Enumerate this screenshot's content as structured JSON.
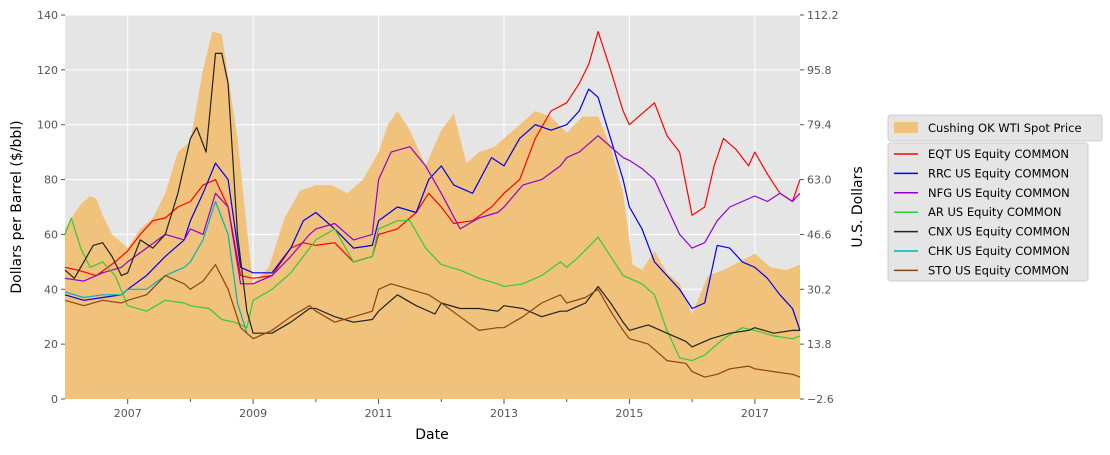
{
  "chart_data": {
    "type": "line",
    "xlabel": "Date",
    "ylabel": "Dollars per Barrel ($/bbl)",
    "ylabel_right": "U.S. Dollars",
    "xlim": [
      2006.0,
      2017.72
    ],
    "ylim": [
      0,
      140
    ],
    "ylim_right": [
      -2.6,
      112.2
    ],
    "x_ticks": [
      2007,
      2009,
      2011,
      2013,
      2015,
      2017
    ],
    "x_minor_ticks": [
      2008,
      2010,
      2012,
      2014,
      2016
    ],
    "y_ticks": [
      0,
      20,
      40,
      60,
      80,
      100,
      120,
      140
    ],
    "y_ticks_right": [
      "−2.6",
      "13.8",
      "30.2",
      "46.6",
      "63.0",
      "79.4",
      "95.8",
      "112.2"
    ],
    "grid": true,
    "legend_position": "right",
    "area": {
      "name": "Cushing OK WTI Spot Price",
      "color": "#f0c27b",
      "x": [
        2006.0,
        2006.1,
        2006.25,
        2006.4,
        2006.5,
        2006.6,
        2006.75,
        2006.85,
        2007.0,
        2007.2,
        2007.4,
        2007.6,
        2007.8,
        2008.0,
        2008.2,
        2008.35,
        2008.5,
        2008.65,
        2008.75,
        2008.9,
        2009.0,
        2009.25,
        2009.5,
        2009.75,
        2010.0,
        2010.25,
        2010.5,
        2010.75,
        2011.0,
        2011.15,
        2011.3,
        2011.5,
        2011.75,
        2012.0,
        2012.2,
        2012.4,
        2012.6,
        2012.85,
        2013.0,
        2013.25,
        2013.5,
        2013.75,
        2014.0,
        2014.25,
        2014.5,
        2014.7,
        2014.9,
        2015.05,
        2015.2,
        2015.4,
        2015.6,
        2015.8,
        2016.0,
        2016.25,
        2016.5,
        2016.75,
        2017.0,
        2017.25,
        2017.5,
        2017.72
      ],
      "values": [
        62,
        66,
        71,
        74,
        73,
        67,
        60,
        58,
        55,
        62,
        66,
        75,
        90,
        94,
        120,
        134,
        133,
        110,
        95,
        62,
        42,
        48,
        66,
        76,
        78,
        78,
        75,
        80,
        90,
        100,
        105,
        98,
        85,
        98,
        104,
        86,
        90,
        92,
        95,
        100,
        105,
        103,
        97,
        103,
        103,
        92,
        75,
        49,
        47,
        54,
        46,
        42,
        31,
        45,
        47,
        50,
        53,
        48,
        47,
        49
      ]
    },
    "series": [
      {
        "name": "EQT US Equity COMMON",
        "color": "#ff0000",
        "x": [
          2006.0,
          2006.2,
          2006.5,
          2006.8,
          2007.0,
          2007.2,
          2007.4,
          2007.6,
          2007.8,
          2008.0,
          2008.2,
          2008.4,
          2008.6,
          2008.8,
          2009.0,
          2009.3,
          2009.6,
          2009.8,
          2010.0,
          2010.3,
          2010.6,
          2010.9,
          2011.0,
          2011.3,
          2011.6,
          2011.8,
          2012.0,
          2012.2,
          2012.5,
          2012.8,
          2013.0,
          2013.25,
          2013.5,
          2013.75,
          2014.0,
          2014.2,
          2014.35,
          2014.5,
          2014.7,
          2014.9,
          2015.0,
          2015.2,
          2015.4,
          2015.6,
          2015.8,
          2016.0,
          2016.2,
          2016.35,
          2016.5,
          2016.7,
          2016.9,
          2017.0,
          2017.2,
          2017.4,
          2017.6,
          2017.72
        ],
        "values": [
          48,
          47,
          45,
          50,
          54,
          60,
          65,
          66,
          70,
          72,
          78,
          80,
          70,
          45,
          44,
          45,
          55,
          57,
          56,
          57,
          50,
          52,
          60,
          62,
          68,
          75,
          70,
          64,
          65,
          70,
          75,
          80,
          95,
          105,
          108,
          115,
          122,
          134,
          120,
          105,
          100,
          104,
          108,
          96,
          90,
          67,
          70,
          85,
          95,
          91,
          85,
          90,
          82,
          75,
          72,
          80
        ]
      },
      {
        "name": "RRC US Equity COMMON",
        "color": "#0000ee",
        "x": [
          2006.0,
          2006.3,
          2006.6,
          2006.9,
          2007.0,
          2007.3,
          2007.6,
          2007.9,
          2008.0,
          2008.2,
          2008.4,
          2008.6,
          2008.8,
          2009.0,
          2009.3,
          2009.6,
          2009.8,
          2010.0,
          2010.3,
          2010.6,
          2010.9,
          2011.0,
          2011.3,
          2011.6,
          2011.8,
          2012.0,
          2012.2,
          2012.5,
          2012.8,
          2013.0,
          2013.25,
          2013.5,
          2013.75,
          2014.0,
          2014.2,
          2014.35,
          2014.5,
          2014.7,
          2014.9,
          2015.0,
          2015.2,
          2015.4,
          2015.6,
          2015.8,
          2016.0,
          2016.2,
          2016.4,
          2016.6,
          2016.8,
          2017.0,
          2017.2,
          2017.4,
          2017.6,
          2017.72
        ],
        "values": [
          38,
          36,
          37,
          38,
          40,
          45,
          52,
          58,
          65,
          75,
          86,
          80,
          48,
          46,
          46,
          55,
          65,
          68,
          62,
          55,
          56,
          65,
          70,
          68,
          80,
          85,
          78,
          75,
          88,
          85,
          95,
          100,
          98,
          100,
          105,
          113,
          110,
          95,
          80,
          70,
          62,
          50,
          45,
          40,
          33,
          35,
          56,
          55,
          50,
          48,
          44,
          38,
          33,
          25
        ]
      },
      {
        "name": "NFG US Equity COMMON",
        "color": "#9400d3",
        "x": [
          2006.0,
          2006.3,
          2006.6,
          2006.9,
          2007.0,
          2007.3,
          2007.6,
          2007.9,
          2008.0,
          2008.2,
          2008.4,
          2008.6,
          2008.8,
          2009.0,
          2009.3,
          2009.6,
          2009.9,
          2010.0,
          2010.3,
          2010.6,
          2010.9,
          2011.0,
          2011.2,
          2011.5,
          2011.75,
          2012.0,
          2012.3,
          2012.6,
          2012.9,
          2013.0,
          2013.3,
          2013.6,
          2013.9,
          2014.0,
          2014.2,
          2014.5,
          2014.7,
          2014.9,
          2015.0,
          2015.2,
          2015.4,
          2015.6,
          2015.8,
          2016.0,
          2016.2,
          2016.4,
          2016.6,
          2016.8,
          2017.0,
          2017.2,
          2017.4,
          2017.6,
          2017.72
        ],
        "values": [
          44,
          43,
          46,
          48,
          50,
          55,
          60,
          58,
          62,
          60,
          75,
          70,
          42,
          42,
          45,
          52,
          60,
          62,
          64,
          58,
          60,
          80,
          90,
          92,
          85,
          75,
          62,
          66,
          68,
          70,
          78,
          80,
          85,
          88,
          90,
          96,
          92,
          88,
          87,
          84,
          80,
          70,
          60,
          55,
          57,
          65,
          70,
          72,
          74,
          72,
          75,
          72,
          75
        ]
      },
      {
        "name": "AR US Equity COMMON",
        "color": "#32cd32",
        "x": [
          2006.0,
          2006.1,
          2006.25,
          2006.4,
          2006.6,
          2006.8,
          2007.0,
          2007.3,
          2007.6,
          2007.9,
          2008.0,
          2008.3,
          2008.5,
          2008.7,
          2008.9,
          2009.0,
          2009.3,
          2009.6,
          2009.9,
          2010.0,
          2010.3,
          2010.6,
          2010.9,
          2011.0,
          2011.3,
          2011.5,
          2011.75,
          2012.0,
          2012.3,
          2012.6,
          2012.9,
          2013.0,
          2013.3,
          2013.6,
          2013.9,
          2014.0,
          2014.2,
          2014.5,
          2014.7,
          2014.9,
          2015.0,
          2015.2,
          2015.4,
          2015.6,
          2015.8,
          2016.0,
          2016.2,
          2016.5,
          2016.8,
          2017.0,
          2017.3,
          2017.6,
          2017.72
        ],
        "values": [
          60,
          66,
          55,
          48,
          50,
          45,
          34,
          32,
          36,
          35,
          34,
          33,
          29,
          28,
          26,
          36,
          40,
          46,
          55,
          58,
          62,
          50,
          52,
          62,
          65,
          65,
          55,
          49,
          47,
          44,
          42,
          41,
          42,
          45,
          50,
          48,
          52,
          59,
          52,
          45,
          44,
          42,
          38,
          25,
          15,
          14,
          16,
          22,
          26,
          25,
          23,
          22,
          23
        ]
      },
      {
        "name": "CNX US Equity COMMON",
        "color": "#222222",
        "x": [
          2006.0,
          2006.15,
          2006.3,
          2006.45,
          2006.6,
          2006.75,
          2006.9,
          2007.0,
          2007.2,
          2007.4,
          2007.6,
          2007.8,
          2008.0,
          2008.1,
          2008.25,
          2008.4,
          2008.5,
          2008.6,
          2008.75,
          2008.9,
          2009.0,
          2009.3,
          2009.6,
          2009.9,
          2010.0,
          2010.3,
          2010.6,
          2010.9,
          2011.0,
          2011.3,
          2011.6,
          2011.9,
          2012.0,
          2012.3,
          2012.6,
          2012.9,
          2013.0,
          2013.3,
          2013.6,
          2013.9,
          2014.0,
          2014.3,
          2014.5,
          2014.7,
          2014.9,
          2015.0,
          2015.3,
          2015.6,
          2015.9,
          2016.0,
          2016.3,
          2016.6,
          2016.9,
          2017.0,
          2017.3,
          2017.6,
          2017.72
        ],
        "values": [
          47,
          44,
          50,
          56,
          57,
          52,
          45,
          46,
          58,
          55,
          60,
          75,
          95,
          99,
          90,
          126,
          126,
          115,
          60,
          32,
          24,
          24,
          28,
          33,
          33,
          30,
          28,
          29,
          32,
          38,
          34,
          31,
          35,
          33,
          33,
          32,
          34,
          33,
          30,
          32,
          32,
          35,
          41,
          35,
          28,
          25,
          27,
          24,
          21,
          19,
          22,
          24,
          25,
          26,
          24,
          25,
          25
        ]
      },
      {
        "name": "CHK US Equity COMMON",
        "color": "#00b5b5",
        "x": [
          2006.0,
          2006.3,
          2006.6,
          2006.9,
          2007.0,
          2007.3,
          2007.6,
          2007.9,
          2008.0,
          2008.2,
          2008.4,
          2008.6,
          2008.75,
          2008.9
        ],
        "values": [
          39,
          37,
          38,
          38,
          40,
          40,
          45,
          48,
          50,
          58,
          72,
          60,
          35,
          24
        ]
      },
      {
        "name": "STO US Equity COMMON",
        "color": "#8b4513",
        "x": [
          2006.0,
          2006.3,
          2006.6,
          2006.9,
          2007.0,
          2007.3,
          2007.6,
          2007.9,
          2008.0,
          2008.2,
          2008.4,
          2008.6,
          2008.8,
          2009.0,
          2009.3,
          2009.6,
          2009.9,
          2010.0,
          2010.3,
          2010.6,
          2010.9,
          2011.0,
          2011.2,
          2011.5,
          2011.8,
          2012.0,
          2012.3,
          2012.6,
          2012.9,
          2013.0,
          2013.3,
          2013.6,
          2013.9,
          2014.0,
          2014.3,
          2014.5,
          2014.7,
          2014.9,
          2015.0,
          2015.3,
          2015.6,
          2015.9,
          2016.0,
          2016.2,
          2016.4,
          2016.6,
          2016.9,
          2017.0,
          2017.3,
          2017.6,
          2017.72
        ],
        "values": [
          36,
          34,
          36,
          35,
          36,
          38,
          45,
          42,
          40,
          43,
          49,
          40,
          26,
          22,
          25,
          30,
          34,
          32,
          28,
          30,
          32,
          40,
          42,
          40,
          38,
          35,
          30,
          25,
          26,
          26,
          30,
          35,
          38,
          35,
          37,
          40,
          32,
          25,
          22,
          20,
          14,
          13,
          10,
          8,
          9,
          11,
          12,
          11,
          10,
          9,
          8
        ]
      }
    ]
  }
}
